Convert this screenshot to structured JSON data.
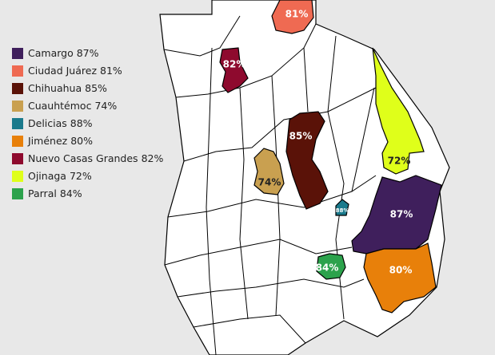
{
  "regions": [
    {
      "name": "Camargo",
      "value": 87,
      "label": "87%",
      "color": "#3f1f5c"
    },
    {
      "name": "Ciudad Juárez",
      "value": 81,
      "label": "81%",
      "color": "#ef6a52"
    },
    {
      "name": "Chihuahua",
      "value": 85,
      "label": "85%",
      "color": "#5a1208"
    },
    {
      "name": "Cuauhtémoc",
      "value": 74,
      "label": "74%",
      "color": "#c9a050"
    },
    {
      "name": "Delicias",
      "value": 88,
      "label": "88%",
      "color": "#1a7a8c"
    },
    {
      "name": "Jiménez",
      "value": 80,
      "label": "80%",
      "color": "#e8800a"
    },
    {
      "name": "Nuevo Casas Grandes",
      "value": 82,
      "label": "82%",
      "color": "#8e0a2e"
    },
    {
      "name": "Ojinaga",
      "value": 72,
      "label": "72%",
      "color": "#dfff1a"
    },
    {
      "name": "Parral",
      "value": 84,
      "label": "84%",
      "color": "#2ca24c"
    }
  ]
}
